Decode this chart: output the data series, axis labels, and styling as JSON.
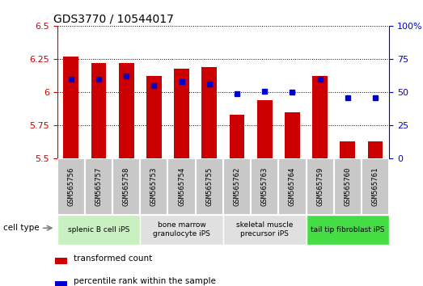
{
  "title": "GDS3770 / 10544017",
  "samples": [
    "GSM565756",
    "GSM565757",
    "GSM565758",
    "GSM565753",
    "GSM565754",
    "GSM565755",
    "GSM565762",
    "GSM565763",
    "GSM565764",
    "GSM565759",
    "GSM565760",
    "GSM565761"
  ],
  "bar_values": [
    6.27,
    6.22,
    6.22,
    6.12,
    6.18,
    6.19,
    5.83,
    5.94,
    5.85,
    6.12,
    5.63,
    5.63
  ],
  "dot_values": [
    60,
    60,
    62,
    55,
    58,
    56,
    49,
    51,
    50,
    60,
    46,
    46
  ],
  "ymin": 5.5,
  "ymax": 6.5,
  "y2min": 0,
  "y2max": 100,
  "yticks": [
    5.5,
    5.75,
    6.0,
    6.25,
    6.5
  ],
  "ytick_labels": [
    "5.5",
    "5.75",
    "6",
    "6.25",
    "6.5"
  ],
  "y2ticks": [
    0,
    25,
    50,
    75,
    100
  ],
  "y2tick_labels": [
    "0",
    "25",
    "50",
    "75",
    "100%"
  ],
  "bar_color": "#cc0000",
  "dot_color": "#0000cc",
  "bar_bottom": 5.5,
  "cell_types": [
    {
      "label": "splenic B cell iPS",
      "start": 0,
      "end": 3,
      "color": "#c8f0c0"
    },
    {
      "label": "bone marrow\ngranulocyte iPS",
      "start": 3,
      "end": 6,
      "color": "#e0e0e0"
    },
    {
      "label": "skeletal muscle\nprecursor iPS",
      "start": 6,
      "end": 9,
      "color": "#e0e0e0"
    },
    {
      "label": "tail tip fibroblast iPS",
      "start": 9,
      "end": 12,
      "color": "#44dd44"
    }
  ],
  "legend_items": [
    {
      "label": "transformed count",
      "color": "#cc0000"
    },
    {
      "label": "percentile rank within the sample",
      "color": "#0000cc"
    }
  ],
  "tick_color_left": "#cc0000",
  "tick_color_right": "#0000cc",
  "sample_box_color": "#c8c8c8",
  "sample_box_edge": "#ffffff"
}
